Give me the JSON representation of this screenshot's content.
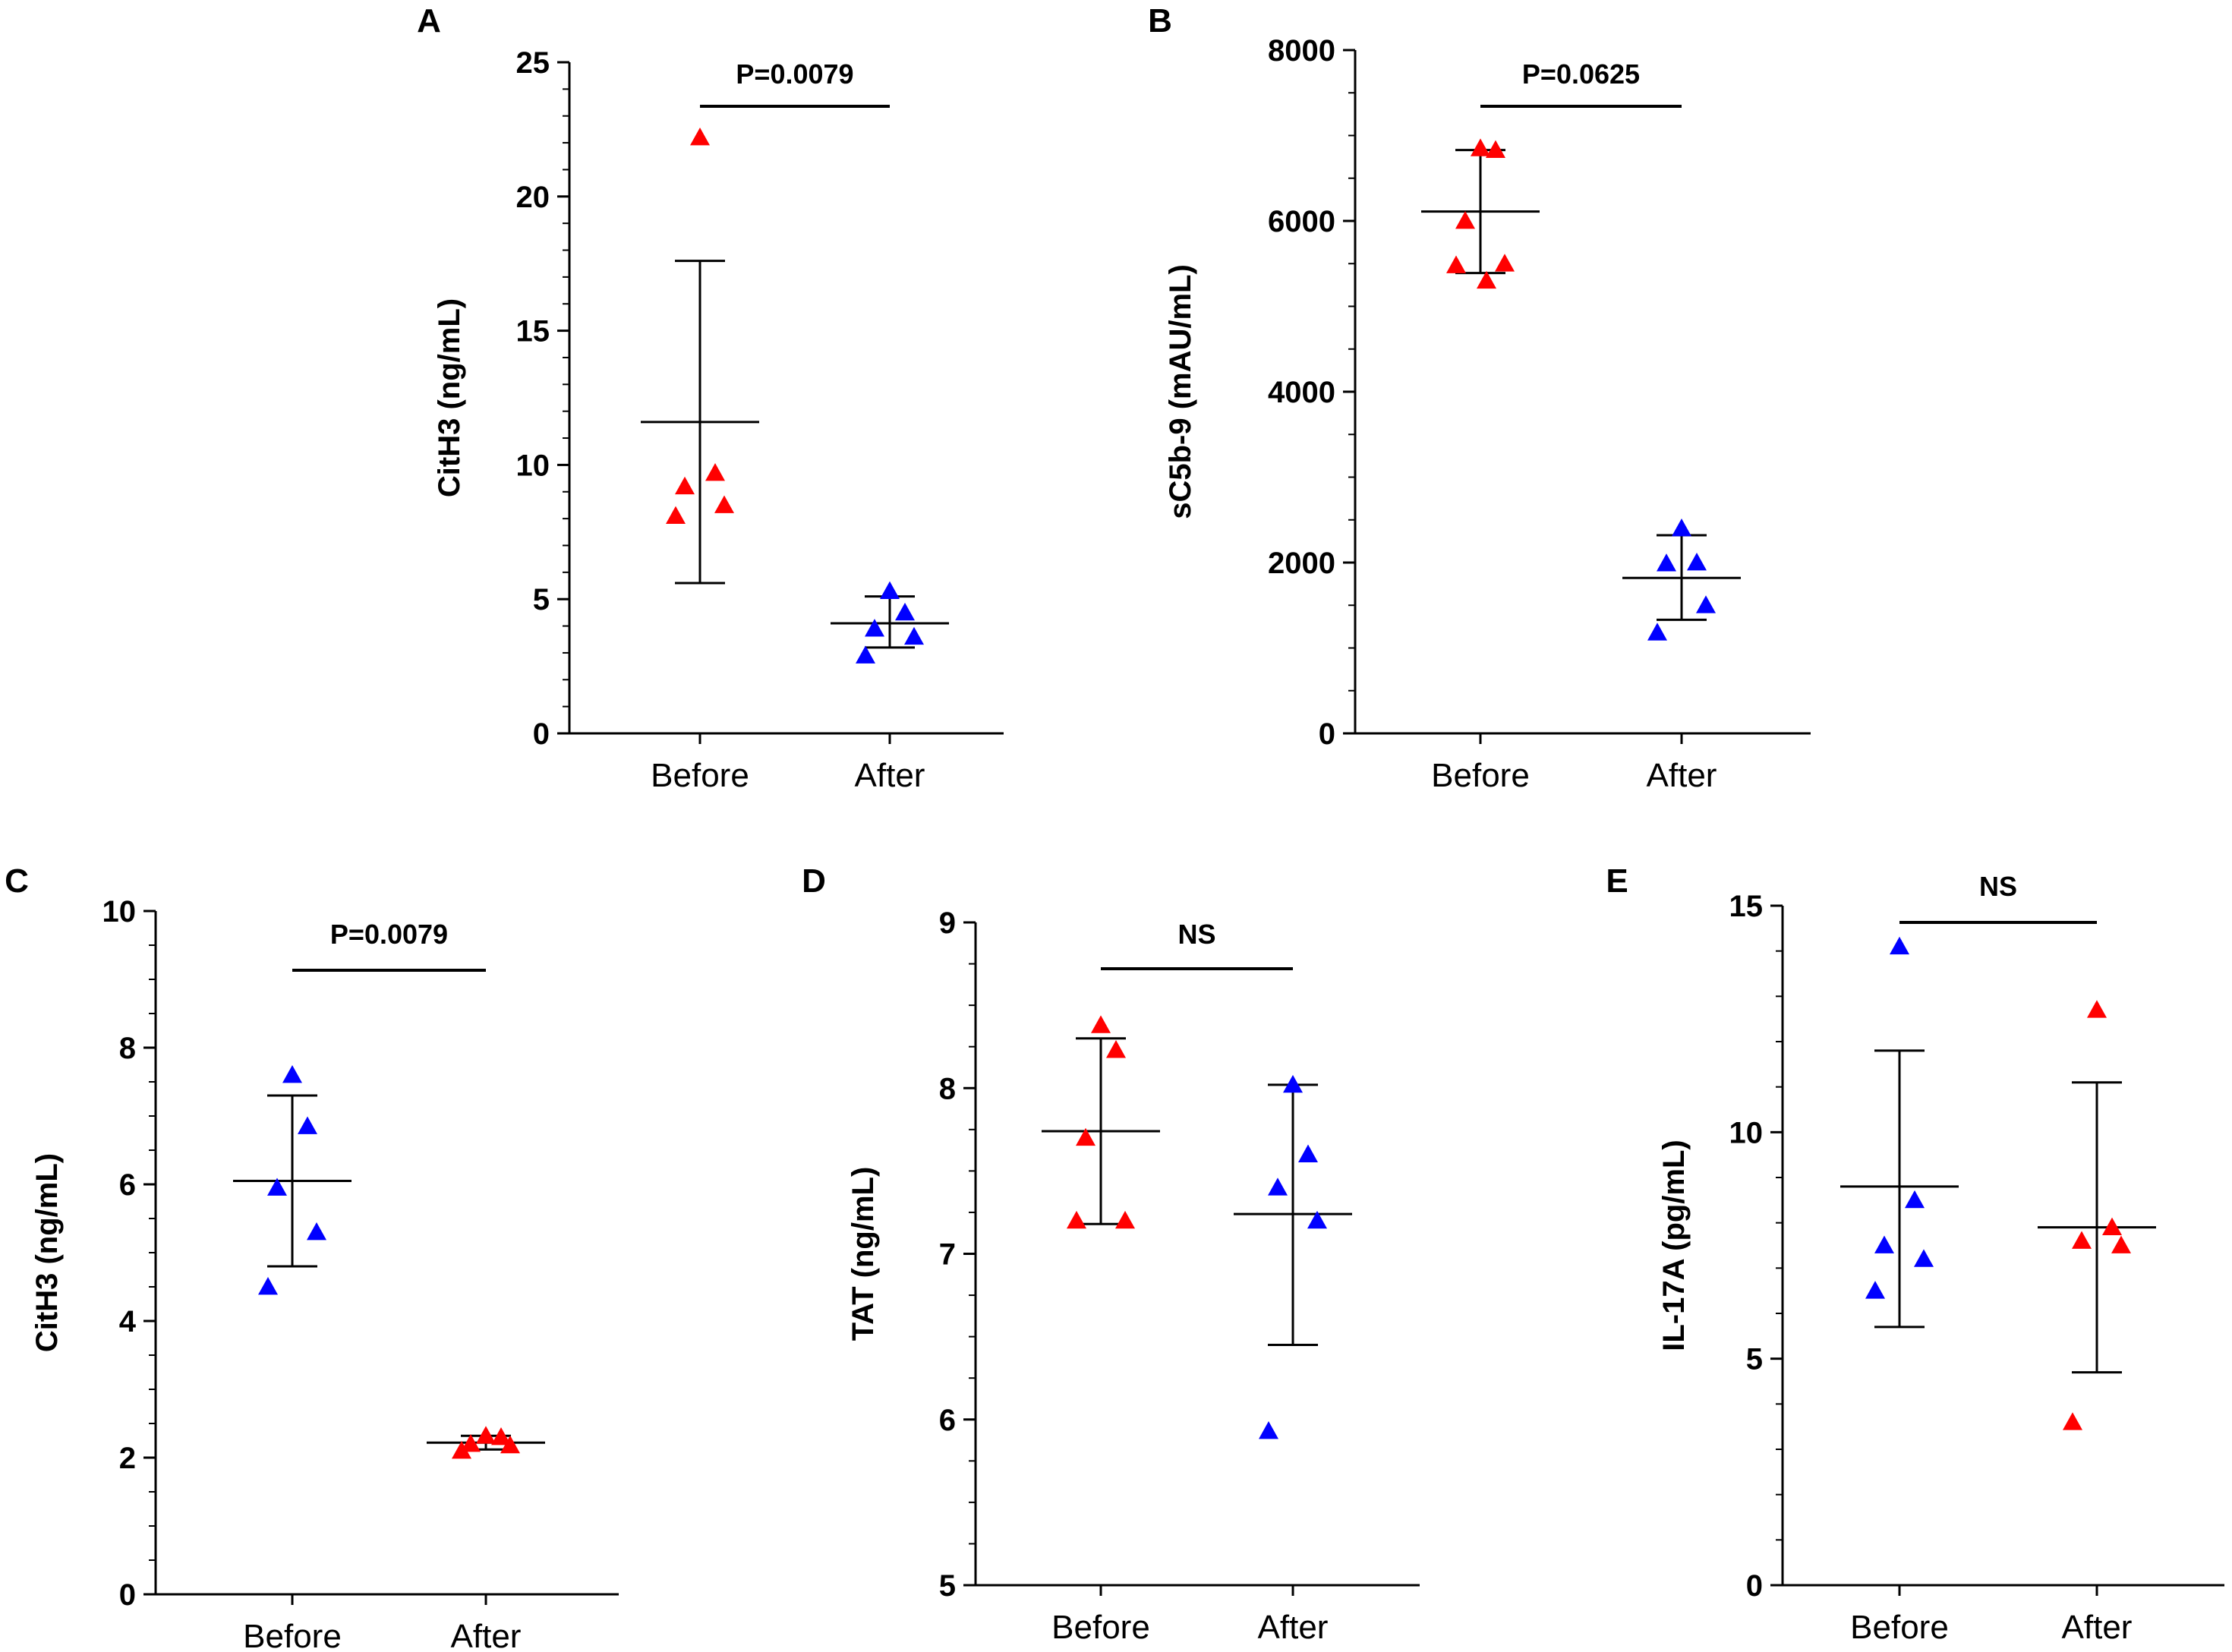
{
  "chart_data": [
    {
      "panel": "A",
      "type": "scatter",
      "ylabel": "CitH3 (ng/mL)",
      "ylim": [
        0,
        25
      ],
      "yticks": [
        0,
        5,
        10,
        15,
        20,
        25
      ],
      "minor_per_major": 5,
      "categories": [
        "Before",
        "After"
      ],
      "groups": [
        {
          "category": "Before",
          "color": "#ff0000",
          "points": [
            22.2,
            9.7,
            9.2,
            8.5,
            8.1
          ],
          "mean": 11.6,
          "sd_low": 5.6,
          "sd_high": 17.6
        },
        {
          "category": "After",
          "color": "#0000ff",
          "points": [
            5.3,
            4.5,
            3.9,
            3.6,
            2.9
          ],
          "mean": 4.1,
          "sd_low": 3.2,
          "sd_high": 5.1
        }
      ],
      "significance": "P=0.0079"
    },
    {
      "panel": "B",
      "type": "scatter",
      "ylabel": "sC5b-9 (mAU/mL)",
      "ylim": [
        0,
        8000
      ],
      "yticks": [
        0,
        2000,
        4000,
        6000,
        8000
      ],
      "minor_per_major": 4,
      "categories": [
        "Before",
        "After"
      ],
      "groups": [
        {
          "category": "Before",
          "color": "#ff0000",
          "points": [
            6850,
            6830,
            6000,
            5500,
            5480,
            5300
          ],
          "mean": 6110,
          "sd_low": 5390,
          "sd_high": 6830
        },
        {
          "category": "After",
          "color": "#0000ff",
          "points": [
            2400,
            2000,
            1990,
            1500,
            1180
          ],
          "mean": 1820,
          "sd_low": 1330,
          "sd_high": 2320
        }
      ],
      "significance": "P=0.0625"
    },
    {
      "panel": "C",
      "type": "scatter",
      "ylabel": "CitH3 (ng/mL)",
      "ylim": [
        0,
        10
      ],
      "yticks": [
        0,
        2,
        4,
        6,
        8,
        10
      ],
      "minor_per_major": 4,
      "categories": [
        "Before",
        "After"
      ],
      "groups": [
        {
          "category": "Before",
          "color": "#0000ff",
          "points": [
            7.6,
            6.85,
            5.95,
            5.3,
            4.5
          ],
          "mean": 6.05,
          "sd_low": 4.8,
          "sd_high": 7.3
        },
        {
          "category": "After",
          "color": "#ff0000",
          "points": [
            2.32,
            2.3,
            2.2,
            2.18,
            2.1
          ],
          "mean": 2.22,
          "sd_low": 2.12,
          "sd_high": 2.32
        }
      ],
      "significance": "P=0.0079"
    },
    {
      "panel": "D",
      "type": "scatter",
      "ylabel": "TAT (ng/mL)",
      "ylim": [
        5,
        9
      ],
      "yticks": [
        5,
        6,
        7,
        8,
        9
      ],
      "minor_per_major": 4,
      "categories": [
        "Before",
        "After"
      ],
      "groups": [
        {
          "category": "Before",
          "color": "#ff0000",
          "points": [
            8.38,
            8.23,
            7.7,
            7.2,
            7.2
          ],
          "mean": 7.74,
          "sd_low": 7.18,
          "sd_high": 8.3
        },
        {
          "category": "After",
          "color": "#0000ff",
          "points": [
            8.02,
            7.6,
            7.4,
            7.2,
            5.93
          ],
          "mean": 7.24,
          "sd_low": 6.45,
          "sd_high": 8.02
        }
      ],
      "significance": "NS"
    },
    {
      "panel": "E",
      "type": "scatter",
      "ylabel": "IL-17A (pg/mL)",
      "ylim": [
        0,
        15
      ],
      "yticks": [
        0,
        5,
        10,
        15
      ],
      "minor_per_major": 5,
      "categories": [
        "Before",
        "After"
      ],
      "groups": [
        {
          "category": "Before",
          "color": "#0000ff",
          "points": [
            14.1,
            8.5,
            7.5,
            7.2,
            6.5
          ],
          "mean": 8.8,
          "sd_low": 5.7,
          "sd_high": 11.8
        },
        {
          "category": "After",
          "color": "#ff0000",
          "points": [
            12.7,
            7.9,
            7.6,
            7.5,
            3.6
          ],
          "mean": 7.9,
          "sd_low": 4.7,
          "sd_high": 11.1
        }
      ],
      "significance": "NS"
    }
  ]
}
